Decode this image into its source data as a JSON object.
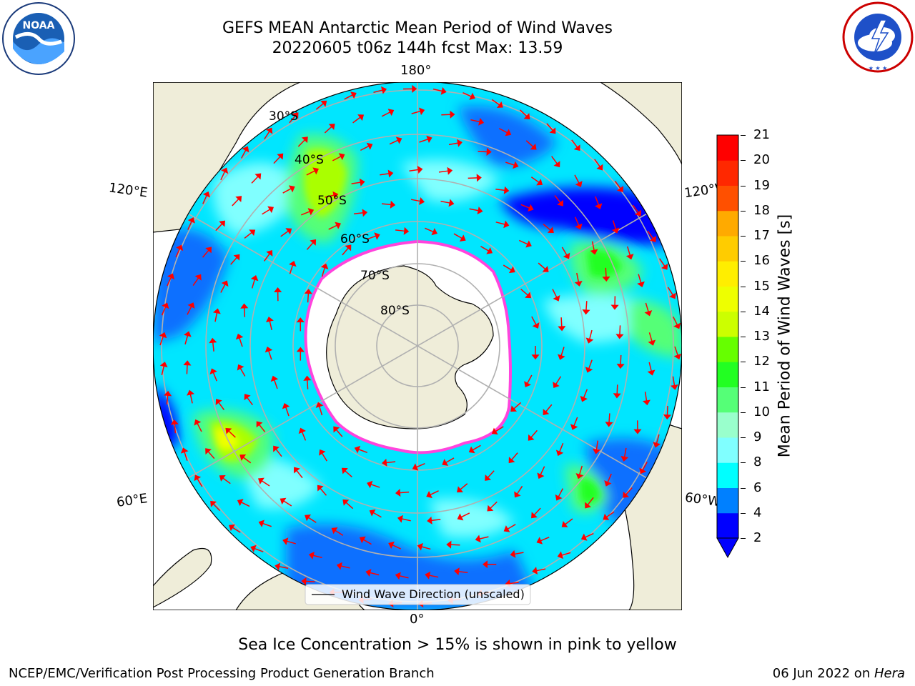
{
  "header": {
    "title_line1": "GEFS MEAN Antarctic Mean Period of Wind Waves",
    "title_line2": "20220605 t06z 144h fcst   Max: 13.59"
  },
  "map": {
    "lon_labels": {
      "top": "180°",
      "bottom": "0°",
      "left_upper": "120°E",
      "left_lower": "60°E",
      "right_upper": "120°W",
      "right_lower": "60°W"
    },
    "lat_labels": [
      "30°S",
      "40°S",
      "50°S",
      "60°S",
      "70°S",
      "80°S"
    ],
    "legend_text": "Wind Wave Direction (unscaled)",
    "colors": {
      "land": "#efedd9",
      "ice": "#ffffff",
      "ice_edge": "#ff44dd",
      "arrow": "#ff0000"
    }
  },
  "colorbar": {
    "label": "Mean Period of Wind Waves [s]",
    "ticks": [
      "2",
      "4",
      "6",
      "8",
      "9",
      "10",
      "11",
      "12",
      "13",
      "14",
      "15",
      "16",
      "17",
      "18",
      "19",
      "20",
      "21"
    ],
    "colors": [
      "#0000ff",
      "#0080ff",
      "#00ffff",
      "#40ffff",
      "#80ffff",
      "#99ffcc",
      "#55ff77",
      "#22ff22",
      "#66ff00",
      "#aaff00",
      "#ccff00",
      "#eeff00",
      "#ffee00",
      "#ffcc00",
      "#ffaa00",
      "#ff8000",
      "#ff5000",
      "#ff2800",
      "#ff0000"
    ]
  },
  "footer": {
    "note": "Sea Ice Concentration > 15% is shown in pink to yellow",
    "left": "NCEP/EMC/Verification Post Processing Product Generation Branch",
    "right_prefix": "06 Jun 2022 on ",
    "right_machine": "Hera"
  },
  "logos": {
    "noaa": "NOAA",
    "noaa_ring": "NATIONAL OCEANIC AND ATMOSPHERIC ADMINISTRATION · U.S. DEPARTMENT OF COMMERCE",
    "nws_ring": "NATIONAL WEATHER SERVICE"
  }
}
